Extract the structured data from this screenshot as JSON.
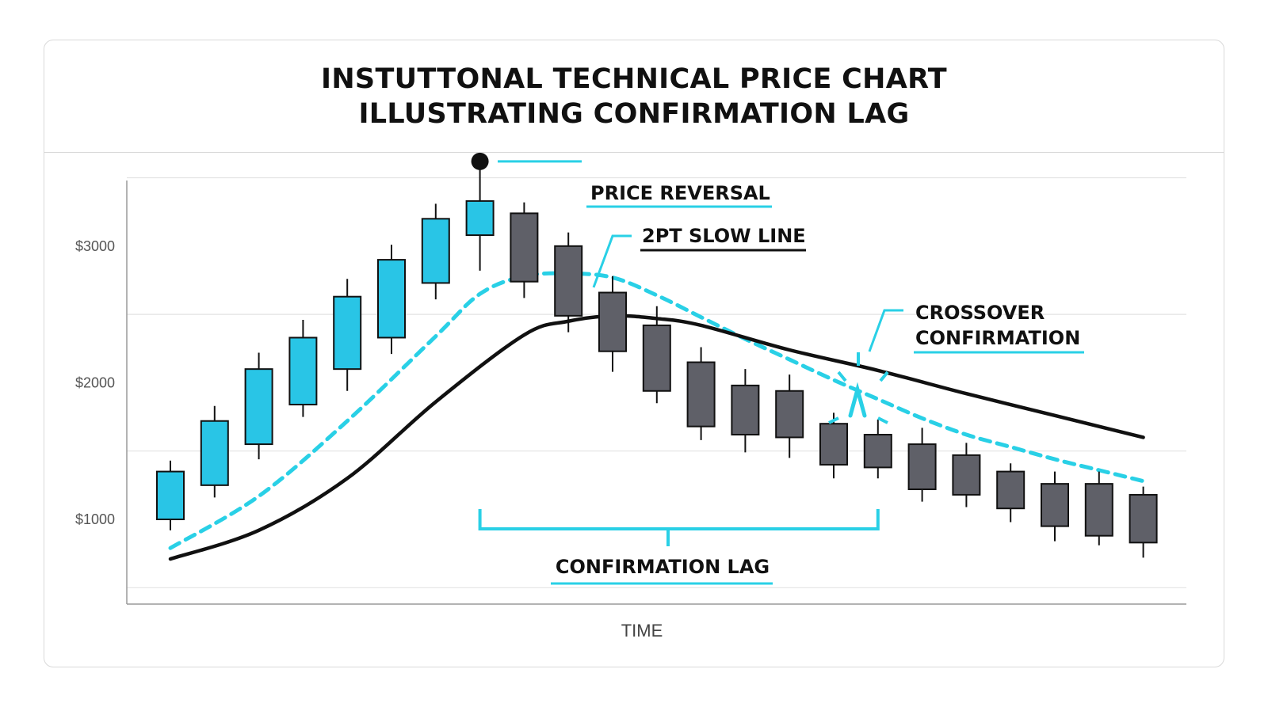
{
  "title": {
    "line1": "INSTUTTONAL TECHNICAL PRICE CHART",
    "line2": "ILLUSTRATING CONFIRMATION LAG"
  },
  "colors": {
    "bullish": "#29c5e6",
    "bearish": "#5f6068",
    "outline": "#111111",
    "fast_line": "#29d0e6",
    "slow_line": "#111111",
    "accent": "#29d0e6",
    "grid": "#e2e2e2"
  },
  "chart_data": {
    "type": "candlestick",
    "title": "INSTUTTONAL TECHNICAL PRICE CHART ILLUSTRATING CONFIRMATION LAG",
    "xlabel": "TIME",
    "ylabel": "",
    "ylim": [
      380,
      3480
    ],
    "x_categories": 23,
    "yticks": [
      {
        "value": 1000,
        "label": "$1000"
      },
      {
        "value": 2000,
        "label": "$2000"
      },
      {
        "value": 3000,
        "label": "$3000"
      }
    ],
    "grid": true,
    "candles": [
      {
        "open": 1000,
        "close": 1350,
        "high": 1430,
        "low": 920
      },
      {
        "open": 1250,
        "close": 1720,
        "high": 1830,
        "low": 1160
      },
      {
        "open": 1550,
        "close": 2100,
        "high": 2220,
        "low": 1440
      },
      {
        "open": 1840,
        "close": 2330,
        "high": 2460,
        "low": 1750
      },
      {
        "open": 2100,
        "close": 2630,
        "high": 2760,
        "low": 1940
      },
      {
        "open": 2330,
        "close": 2900,
        "high": 3010,
        "low": 2210
      },
      {
        "open": 2730,
        "close": 3200,
        "high": 3310,
        "low": 2610
      },
      {
        "open": 3080,
        "close": 3330,
        "high": 3590,
        "low": 2820
      },
      {
        "open": 3240,
        "close": 2740,
        "high": 3320,
        "low": 2620
      },
      {
        "open": 3000,
        "close": 2490,
        "high": 3100,
        "low": 2370
      },
      {
        "open": 2660,
        "close": 2230,
        "high": 2780,
        "low": 2080
      },
      {
        "open": 2420,
        "close": 1940,
        "high": 2560,
        "low": 1850
      },
      {
        "open": 2150,
        "close": 1680,
        "high": 2260,
        "low": 1580
      },
      {
        "open": 1980,
        "close": 1620,
        "high": 2100,
        "low": 1490
      },
      {
        "open": 1940,
        "close": 1600,
        "high": 2060,
        "low": 1450
      },
      {
        "open": 1700,
        "close": 1400,
        "high": 1780,
        "low": 1300
      },
      {
        "open": 1620,
        "close": 1380,
        "high": 1730,
        "low": 1300
      },
      {
        "open": 1550,
        "close": 1220,
        "high": 1670,
        "low": 1130
      },
      {
        "open": 1470,
        "close": 1180,
        "high": 1560,
        "low": 1090
      },
      {
        "open": 1350,
        "close": 1080,
        "high": 1410,
        "low": 980
      },
      {
        "open": 1260,
        "close": 950,
        "high": 1350,
        "low": 840
      },
      {
        "open": 1260,
        "close": 880,
        "high": 1350,
        "low": 810
      },
      {
        "open": 1180,
        "close": 830,
        "high": 1240,
        "low": 720
      }
    ],
    "series": [
      {
        "name": "",
        "style": "dashed",
        "x": [
          0,
          2,
          4,
          6,
          7,
          8,
          9,
          10,
          11,
          12,
          13,
          14,
          15,
          16,
          17,
          18,
          19,
          20,
          21,
          22
        ],
        "y": [
          790,
          1170,
          1720,
          2340,
          2650,
          2780,
          2800,
          2770,
          2640,
          2480,
          2320,
          2170,
          2020,
          1880,
          1740,
          1620,
          1530,
          1440,
          1360,
          1280
        ]
      },
      {
        "name": "",
        "style": "solid",
        "x": [
          0,
          2,
          4,
          6,
          8,
          9,
          10,
          11,
          12,
          14,
          16,
          18,
          20,
          22
        ],
        "y": [
          710,
          920,
          1300,
          1860,
          2350,
          2450,
          2490,
          2470,
          2420,
          2240,
          2090,
          1920,
          1760,
          1600
        ]
      }
    ],
    "annotations": [
      {
        "label": "PRICE REVERSAL",
        "x": 7,
        "y": 3620
      },
      {
        "label": "2PT SLOW LINE",
        "x": 9.7,
        "y": 3000
      },
      {
        "label": "CROSSOVER",
        "x": 16,
        "y": 2150
      },
      {
        "label": "CONFIRMATION",
        "x": 16,
        "y": 2150
      },
      {
        "label": "CONFIRMATION LAG",
        "x_from": 7,
        "x_to": 16
      }
    ]
  }
}
